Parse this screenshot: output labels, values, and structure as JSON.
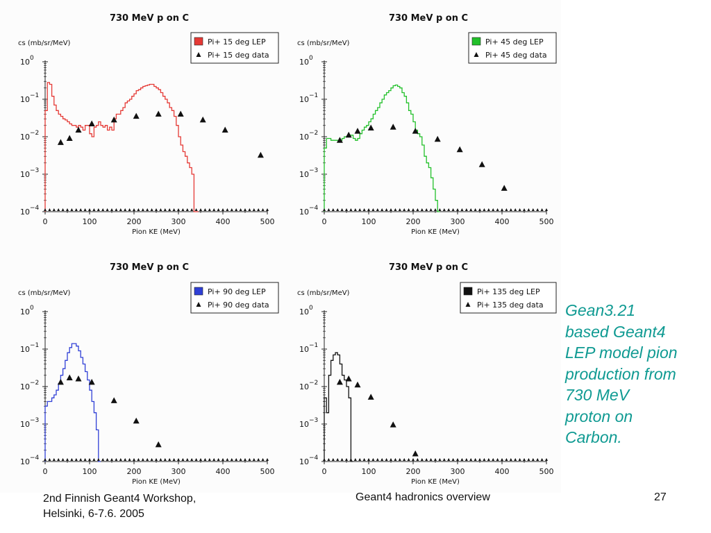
{
  "slide": {
    "caption_lines": [
      "Gean3.21",
      "based Geant4",
      "LEP model pion",
      "production from",
      "730 MeV",
      "proton on",
      "Carbon."
    ],
    "caption_color": "#0f9a92",
    "footer_left_lines": [
      "2nd Finnish Geant4 Workshop,",
      "Helsinki, 6-7.6. 2005"
    ],
    "footer_center": "Geant4 hadronics overview",
    "page_number": "27"
  },
  "chart_data": [
    {
      "type": "line",
      "title": "730 MeV p on C",
      "ylabel": "cs (mb/sr/MeV)",
      "xlabel": "Pion KE (MeV)",
      "xlim": [
        0,
        500
      ],
      "ylim_exp": [
        -4,
        0
      ],
      "yscale": "log",
      "xticks": [
        0,
        100,
        200,
        300,
        400,
        500
      ],
      "yticks": [
        0,
        -1,
        -2,
        -3,
        -4
      ],
      "legend": "top-right",
      "series": [
        {
          "name": "Pi+ 15 deg LEP",
          "kind": "histogram",
          "color": "#e53935",
          "x": [
            0,
            5,
            10,
            15,
            20,
            25,
            30,
            35,
            40,
            45,
            50,
            55,
            60,
            65,
            70,
            75,
            80,
            85,
            90,
            95,
            100,
            105,
            110,
            115,
            120,
            125,
            130,
            135,
            140,
            145,
            150,
            155,
            160,
            165,
            170,
            175,
            180,
            185,
            190,
            195,
            200,
            205,
            210,
            215,
            220,
            225,
            230,
            235,
            240,
            245,
            250,
            255,
            260,
            265,
            270,
            275,
            280,
            285,
            290,
            295,
            300,
            305,
            310,
            315,
            320,
            325,
            330,
            335,
            340
          ],
          "y": [
            0.05,
            0.28,
            0.25,
            0.12,
            0.07,
            0.05,
            0.04,
            0.035,
            0.03,
            0.028,
            0.025,
            0.022,
            0.02,
            0.02,
            0.018,
            0.02,
            0.018,
            0.015,
            0.02,
            0.02,
            0.012,
            0.01,
            0.018,
            0.02,
            0.025,
            0.02,
            0.018,
            0.02,
            0.015,
            0.018,
            0.015,
            0.03,
            0.04,
            0.04,
            0.05,
            0.06,
            0.08,
            0.09,
            0.1,
            0.12,
            0.14,
            0.17,
            0.18,
            0.2,
            0.22,
            0.23,
            0.24,
            0.25,
            0.25,
            0.22,
            0.2,
            0.18,
            0.15,
            0.12,
            0.1,
            0.08,
            0.06,
            0.05,
            0.035,
            0.02,
            0.01,
            0.006,
            0.004,
            0.003,
            0.002,
            0.0015,
            0.001,
            0.0001,
            0.0001
          ]
        },
        {
          "name": "Pi+ 15 deg data",
          "kind": "points",
          "x": [
            35,
            55,
            75,
            105,
            155,
            205,
            255,
            305,
            355,
            405,
            485
          ],
          "y": [
            0.007,
            0.009,
            0.015,
            0.022,
            0.028,
            0.035,
            0.04,
            0.04,
            0.028,
            0.015,
            0.0032
          ]
        }
      ]
    },
    {
      "type": "line",
      "title": "730 MeV p on C",
      "ylabel": "cs (mb/sr/MeV)",
      "xlabel": "Pion KE (MeV)",
      "xlim": [
        0,
        500
      ],
      "ylim_exp": [
        -4,
        0
      ],
      "yscale": "log",
      "xticks": [
        0,
        100,
        200,
        300,
        400,
        500
      ],
      "yticks": [
        0,
        -1,
        -2,
        -3,
        -4
      ],
      "legend": "top-right",
      "series": [
        {
          "name": "Pi+ 45 deg LEP",
          "kind": "histogram",
          "color": "#22c02a",
          "x": [
            0,
            5,
            10,
            15,
            20,
            25,
            30,
            35,
            40,
            45,
            50,
            55,
            60,
            65,
            70,
            75,
            80,
            85,
            90,
            95,
            100,
            105,
            110,
            115,
            120,
            125,
            130,
            135,
            140,
            145,
            150,
            155,
            160,
            165,
            170,
            175,
            180,
            185,
            190,
            195,
            200,
            205,
            210,
            215,
            220,
            225,
            230,
            235,
            240,
            245,
            250,
            255
          ],
          "y": [
            0.005,
            0.009,
            0.009,
            0.008,
            0.008,
            0.008,
            0.008,
            0.008,
            0.009,
            0.01,
            0.01,
            0.011,
            0.011,
            0.009,
            0.008,
            0.009,
            0.012,
            0.015,
            0.018,
            0.02,
            0.025,
            0.03,
            0.04,
            0.05,
            0.06,
            0.08,
            0.1,
            0.13,
            0.15,
            0.17,
            0.2,
            0.23,
            0.24,
            0.22,
            0.2,
            0.15,
            0.12,
            0.08,
            0.05,
            0.04,
            0.025,
            0.015,
            0.012,
            0.01,
            0.006,
            0.003,
            0.002,
            0.0015,
            0.0008,
            0.0004,
            0.0002,
            0.0001
          ]
        },
        {
          "name": "Pi+ 45 deg data",
          "kind": "points",
          "x": [
            35,
            55,
            75,
            105,
            155,
            205,
            255,
            305,
            355,
            405
          ],
          "y": [
            0.008,
            0.011,
            0.014,
            0.017,
            0.018,
            0.014,
            0.0085,
            0.0045,
            0.0018,
            0.00042
          ]
        }
      ]
    },
    {
      "type": "line",
      "title": "730 MeV p on C",
      "ylabel": "cs (mb/sr/MeV)",
      "xlabel": "Pion KE (MeV)",
      "xlim": [
        0,
        500
      ],
      "ylim_exp": [
        -4,
        0
      ],
      "yscale": "log",
      "xticks": [
        0,
        100,
        200,
        300,
        400,
        500
      ],
      "yticks": [
        0,
        -1,
        -2,
        -3,
        -4
      ],
      "legend": "top-right",
      "series": [
        {
          "name": "Pi+ 90 deg LEP",
          "kind": "histogram",
          "color": "#2f3fd6",
          "x": [
            0,
            5,
            10,
            15,
            20,
            25,
            30,
            35,
            40,
            45,
            50,
            55,
            60,
            65,
            70,
            75,
            80,
            85,
            90,
            95,
            100,
            105,
            110,
            115,
            120
          ],
          "y": [
            0.003,
            0.004,
            0.004,
            0.005,
            0.006,
            0.008,
            0.012,
            0.02,
            0.03,
            0.05,
            0.08,
            0.11,
            0.14,
            0.14,
            0.12,
            0.09,
            0.06,
            0.04,
            0.025,
            0.015,
            0.008,
            0.004,
            0.002,
            0.0007,
            0.0001
          ]
        },
        {
          "name": "Pi+ 90 deg data",
          "kind": "points",
          "x": [
            35,
            55,
            75,
            105,
            155,
            205,
            255
          ],
          "y": [
            0.013,
            0.017,
            0.016,
            0.013,
            0.0042,
            0.0012,
            0.00028
          ]
        }
      ]
    },
    {
      "type": "line",
      "title": "730 MeV p on C",
      "ylabel": "cs (mb/sr/MeV)",
      "xlabel": "Pion KE (MeV)",
      "xlim": [
        0,
        500
      ],
      "ylim_exp": [
        -4,
        0
      ],
      "yscale": "log",
      "xticks": [
        0,
        100,
        200,
        300,
        400,
        500
      ],
      "yticks": [
        0,
        -1,
        -2,
        -3,
        -4
      ],
      "legend": "top-right",
      "series": [
        {
          "name": "Pi+ 135 deg LEP",
          "kind": "histogram",
          "color": "#111111",
          "x": [
            0,
            5,
            10,
            15,
            20,
            25,
            30,
            35,
            40,
            45,
            50,
            55,
            60
          ],
          "y": [
            0.005,
            0.002,
            0.02,
            0.05,
            0.07,
            0.08,
            0.07,
            0.04,
            0.02,
            0.015,
            0.01,
            0.005,
            0.0001
          ]
        },
        {
          "name": "Pi+ 135 deg data",
          "kind": "points",
          "x": [
            35,
            55,
            75,
            105,
            155,
            205
          ],
          "y": [
            0.013,
            0.016,
            0.011,
            0.0052,
            0.00095,
            0.00016
          ]
        }
      ]
    }
  ]
}
